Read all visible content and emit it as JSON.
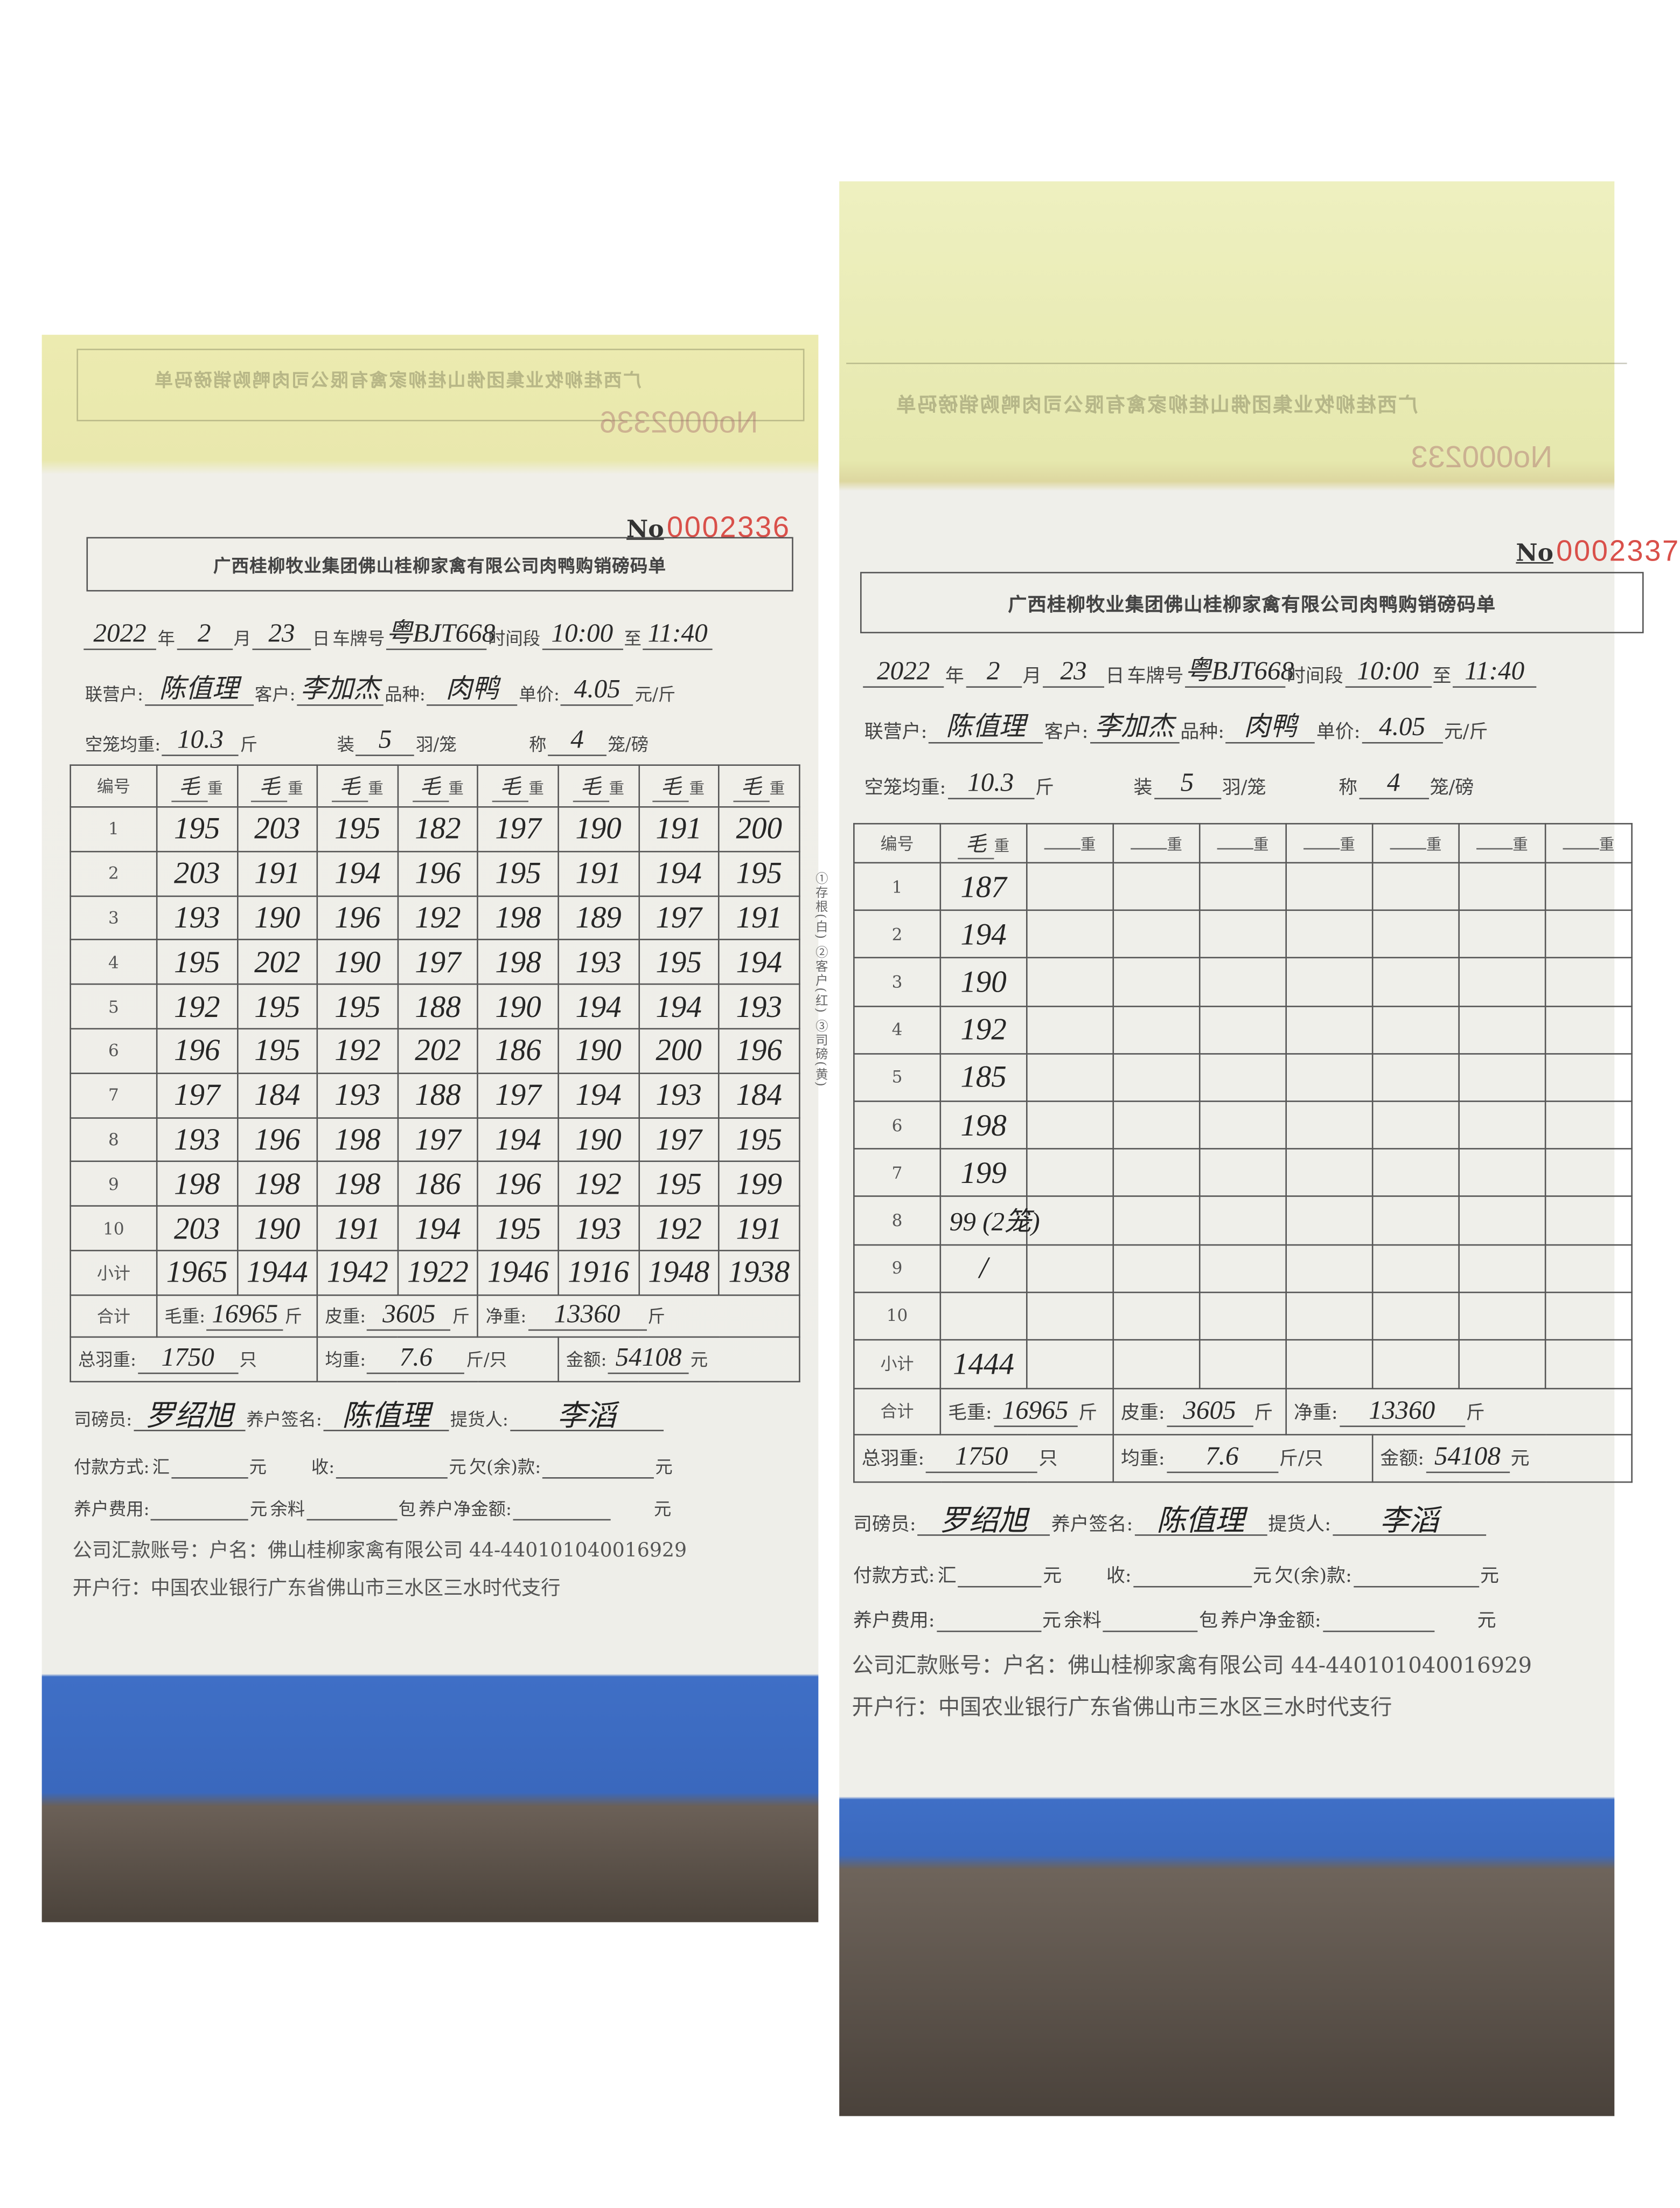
{
  "yellow_sheets": [
    {
      "mirrored_title": "广西桂柳牧业集团佛山桂柳家禽有限公司肉鸭购销磅码单",
      "mirrored_number": "No0002336"
    },
    {
      "mirrored_title": "广西桂柳牧业集团佛山桂柳家禽有限公司肉鸭购销磅码单",
      "mirrored_number": "No000233"
    }
  ],
  "forms": [
    {
      "number_prefix": "No",
      "number": "0002336",
      "title": "广西桂柳牧业集团佛山桂柳家禽有限公司肉鸭购销磅码单",
      "header": {
        "year": "2022",
        "year_label": "年",
        "month": "2",
        "month_label": "月",
        "day": "23",
        "day_label": "日",
        "plate_label": "车牌号",
        "plate": "粤BJT668",
        "time_label": "时间段",
        "time_from": "10:00",
        "to_label": "至",
        "time_to": "11:40"
      },
      "party": {
        "farmer_label": "联营户:",
        "farmer": "陈值理",
        "customer_label": "客户:",
        "customer": "李加杰",
        "breed_label": "品种:",
        "breed": "肉鸭",
        "price_label": "单价:",
        "price": "4.05",
        "price_unit": "元/斤"
      },
      "cage": {
        "empty_label": "空笼均重:",
        "empty": "10.3",
        "empty_unit": "斤",
        "load_label": "装",
        "load": "5",
        "load_unit": "羽/笼",
        "weigh_label": "称",
        "weigh": "4",
        "weigh_unit": "笼/磅"
      },
      "table": {
        "no_header": "编号",
        "col_prefix": [
          "毛",
          "毛",
          "毛",
          "毛",
          "毛",
          "毛",
          "毛",
          "毛"
        ],
        "col_suffix": "重",
        "row_labels": [
          "1",
          "2",
          "3",
          "4",
          "5",
          "6",
          "7",
          "8",
          "9",
          "10"
        ],
        "rows": [
          [
            "195",
            "203",
            "195",
            "182",
            "197",
            "190",
            "191",
            "200"
          ],
          [
            "203",
            "191",
            "194",
            "196",
            "195",
            "191",
            "194",
            "195"
          ],
          [
            "193",
            "190",
            "196",
            "192",
            "198",
            "189",
            "197",
            "191"
          ],
          [
            "195",
            "202",
            "190",
            "197",
            "198",
            "193",
            "195",
            "194"
          ],
          [
            "192",
            "195",
            "195",
            "188",
            "190",
            "194",
            "194",
            "193"
          ],
          [
            "196",
            "195",
            "192",
            "202",
            "186",
            "190",
            "200",
            "196"
          ],
          [
            "197",
            "184",
            "193",
            "188",
            "197",
            "194",
            "193",
            "184"
          ],
          [
            "193",
            "196",
            "198",
            "197",
            "194",
            "190",
            "197",
            "195"
          ],
          [
            "198",
            "198",
            "198",
            "186",
            "196",
            "192",
            "195",
            "199"
          ],
          [
            "203",
            "190",
            "191",
            "194",
            "195",
            "193",
            "192",
            "191"
          ]
        ],
        "subtotal_label": "小计",
        "subtotals": [
          "1965",
          "1944",
          "1942",
          "1922",
          "1946",
          "1916",
          "1948",
          "1938"
        ]
      },
      "totals": {
        "label": "合计",
        "gross_label": "毛重:",
        "gross": "16965",
        "tare_label": "皮重:",
        "tare": "3605",
        "net_label": "净重:",
        "net": "13360",
        "unit": "斤",
        "count_label": "总羽重:",
        "count": "1750",
        "count_unit": "只",
        "avg_label": "均重:",
        "avg": "7.6",
        "avg_unit": "斤/只",
        "amount_label": "金额:",
        "amount": "54108",
        "amount_unit": "元"
      },
      "signatures": {
        "weigher_label": "司磅员:",
        "weigher": "罗绍旭",
        "farmer_label": "养户签名:",
        "farmer": "陈值理",
        "picker_label": "提货人:",
        "picker": "李滔"
      },
      "payment": {
        "method_label": "付款方式:",
        "remit_label": "汇",
        "yuan": "元",
        "received_label": "收:",
        "owed_label": "欠(余)款:",
        "fee_label": "养户费用:",
        "feed_label": "余料",
        "bag": "包",
        "net_amount_label": "养户净金额:"
      },
      "account_line": "公司汇款账号：户名：佛山桂柳家禽有限公司 44-440101040016929",
      "bank_line": "开户行：中国农业银行广东省佛山市三水区三水时代支行",
      "side_note": "①存根(白) ②客户(红) ③司磅(黄)"
    },
    {
      "number_prefix": "No",
      "number": "0002337",
      "title": "广西桂柳牧业集团佛山桂柳家禽有限公司肉鸭购销磅码单",
      "header": {
        "year": "2022",
        "year_label": "年",
        "month": "2",
        "month_label": "月",
        "day": "23",
        "day_label": "日",
        "plate_label": "车牌号",
        "plate": "粤BJT668",
        "time_label": "时间段",
        "time_from": "10:00",
        "to_label": "至",
        "time_to": "11:40"
      },
      "party": {
        "farmer_label": "联营户:",
        "farmer": "陈值理",
        "customer_label": "客户:",
        "customer": "李加杰",
        "breed_label": "品种:",
        "breed": "肉鸭",
        "price_label": "单价:",
        "price": "4.05",
        "price_unit": "元/斤"
      },
      "cage": {
        "empty_label": "空笼均重:",
        "empty": "10.3",
        "empty_unit": "斤",
        "load_label": "装",
        "load": "5",
        "load_unit": "羽/笼",
        "weigh_label": "称",
        "weigh": "4",
        "weigh_unit": "笼/磅"
      },
      "table": {
        "no_header": "编号",
        "col_prefix": [
          "毛",
          "",
          "",
          "",
          "",
          "",
          "",
          ""
        ],
        "col_suffix": "重",
        "row_labels": [
          "1",
          "2",
          "3",
          "4",
          "5",
          "6",
          "7",
          "8",
          "9",
          "10"
        ],
        "rows": [
          [
            "187",
            "",
            "",
            "",
            "",
            "",
            "",
            ""
          ],
          [
            "194",
            "",
            "",
            "",
            "",
            "",
            "",
            ""
          ],
          [
            "190",
            "",
            "",
            "",
            "",
            "",
            "",
            ""
          ],
          [
            "192",
            "",
            "",
            "",
            "",
            "",
            "",
            ""
          ],
          [
            "185",
            "",
            "",
            "",
            "",
            "",
            "",
            ""
          ],
          [
            "198",
            "",
            "",
            "",
            "",
            "",
            "",
            ""
          ],
          [
            "199",
            "",
            "",
            "",
            "",
            "",
            "",
            ""
          ],
          [
            "99 (2笼)",
            "",
            "",
            "",
            "",
            "",
            "",
            ""
          ],
          [
            "/",
            "",
            "",
            "",
            "",
            "",
            "",
            ""
          ],
          [
            "",
            "",
            "",
            "",
            "",
            "",
            "",
            ""
          ]
        ],
        "subtotal_label": "小计",
        "subtotals": [
          "1444",
          "",
          "",
          "",
          "",
          "",
          "",
          ""
        ]
      },
      "totals": {
        "label": "合计",
        "gross_label": "毛重:",
        "gross": "16965",
        "tare_label": "皮重:",
        "tare": "3605",
        "net_label": "净重:",
        "net": "13360",
        "unit": "斤",
        "count_label": "总羽重:",
        "count": "1750",
        "count_unit": "只",
        "avg_label": "均重:",
        "avg": "7.6",
        "avg_unit": "斤/只",
        "amount_label": "金额:",
        "amount": "54108",
        "amount_unit": "元"
      },
      "signatures": {
        "weigher_label": "司磅员:",
        "weigher": "罗绍旭",
        "farmer_label": "养户签名:",
        "farmer": "陈值理",
        "picker_label": "提货人:",
        "picker": "李滔"
      },
      "payment": {
        "method_label": "付款方式:",
        "remit_label": "汇",
        "yuan": "元",
        "received_label": "收:",
        "owed_label": "欠(余)款:",
        "fee_label": "养户费用:",
        "feed_label": "余料",
        "bag": "包",
        "net_amount_label": "养户净金额:"
      },
      "account_line": "公司汇款账号：户名：佛山桂柳家禽有限公司 44-440101040016929",
      "bank_line": "开户行：中国农业银行广东省佛山市三水区三水时代支行"
    }
  ]
}
